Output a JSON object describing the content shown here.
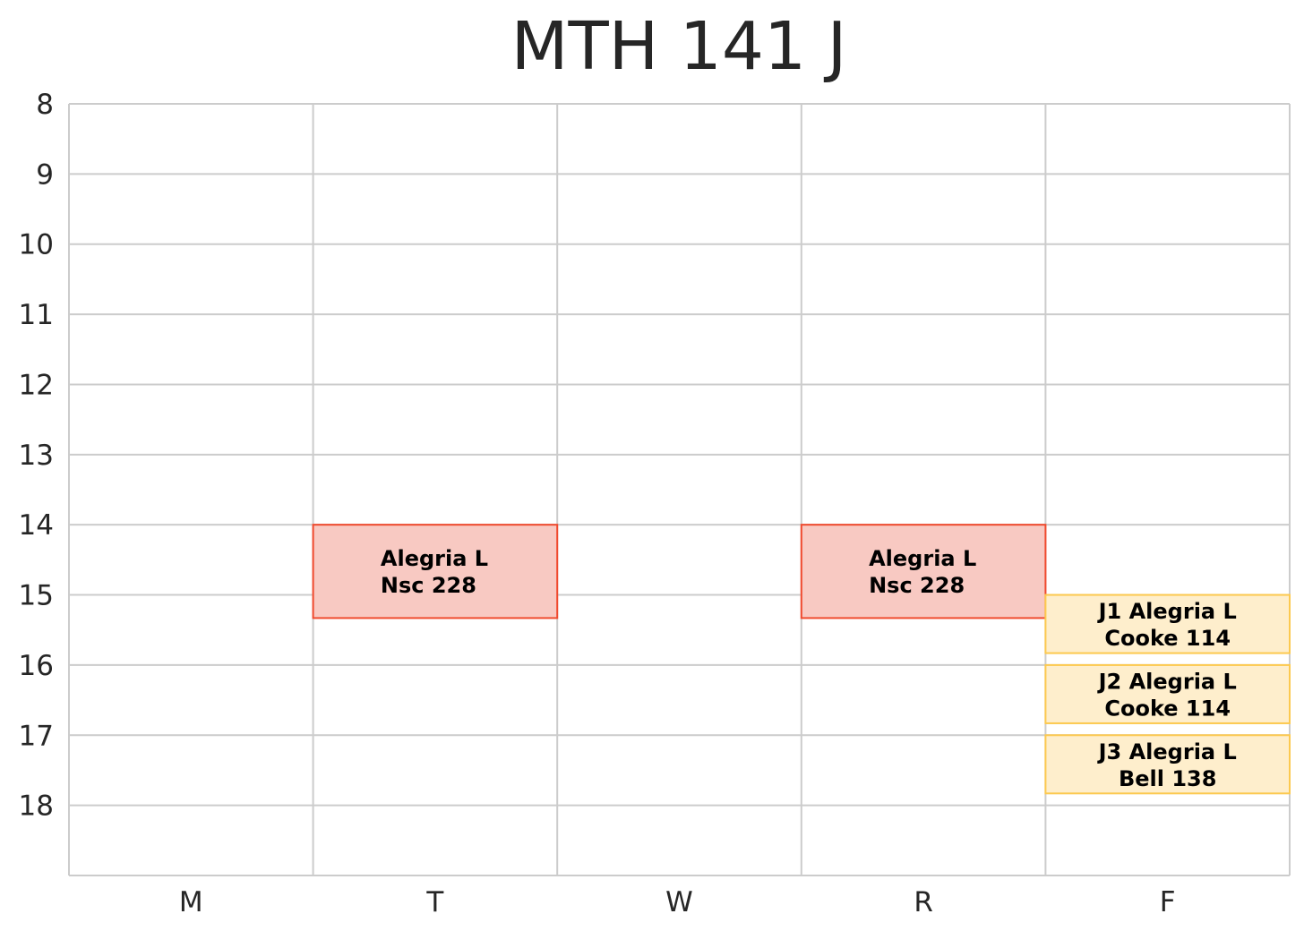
{
  "chart_data": {
    "type": "schedule",
    "title": "MTH 141 J",
    "xlabel": "",
    "ylabel": "",
    "days": [
      "M",
      "T",
      "W",
      "R",
      "F"
    ],
    "y_ticks": [
      8,
      9,
      10,
      11,
      12,
      13,
      14,
      15,
      16,
      17,
      18
    ],
    "ylim": [
      8,
      19
    ],
    "y_inverted": true,
    "grid": true,
    "colors": {
      "lecture_fill": "#f8c9c2",
      "lecture_border": "#f04a2e",
      "section_fill": "#feeecc",
      "section_border": "#fcc94f",
      "grid": "#cccccc",
      "text": "#262626"
    },
    "events": [
      {
        "day": "T",
        "start": 14.0,
        "end": 15.33,
        "lines": [
          "Alegria L",
          "Nsc 228"
        ],
        "kind": "lecture"
      },
      {
        "day": "R",
        "start": 14.0,
        "end": 15.33,
        "lines": [
          "Alegria L",
          "Nsc 228"
        ],
        "kind": "lecture"
      },
      {
        "day": "F",
        "start": 15.0,
        "end": 15.83,
        "lines": [
          "J1 Alegria L",
          "Cooke 114"
        ],
        "kind": "section"
      },
      {
        "day": "F",
        "start": 16.0,
        "end": 16.83,
        "lines": [
          "J2 Alegria L",
          "Cooke 114"
        ],
        "kind": "section"
      },
      {
        "day": "F",
        "start": 17.0,
        "end": 17.83,
        "lines": [
          "J3 Alegria L",
          "Bell 138"
        ],
        "kind": "section"
      }
    ]
  }
}
